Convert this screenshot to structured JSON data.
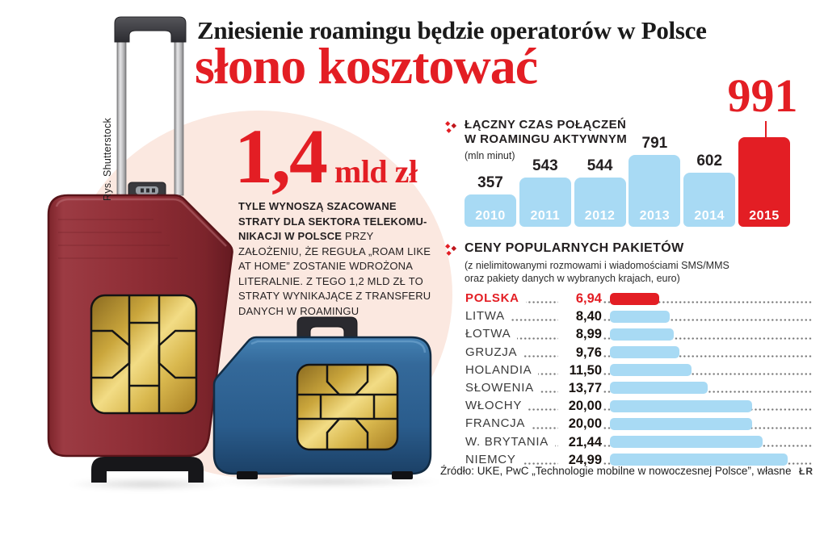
{
  "header": {
    "title_line1": "Zniesienie roamingu będzie operatorów w Polsce",
    "title_line2": "słono kosztować"
  },
  "credit": "Rys. Shutterstock",
  "loss_callout": {
    "big_number": "1,4",
    "unit": "mld zł",
    "bold_text": "TYLE WYNOSZĄ SZACOWANE STRATY DLA SEKTORA TELEKOMU-NIKACJI W POLSCE",
    "regular_text": " PRZY ZAŁOŻENIU, ŻE REGUŁA „ROAM LIKE AT HOME” ZOSTANIE WDROŻONA LITERALNIE. Z TEGO 1,2 MLD ZŁ TO STRATY WYNIKAJĄCE Z TRANSFERU DANYCH W ROAMINGU"
  },
  "chart_data": [
    {
      "type": "bar",
      "orientation": "vertical",
      "title": "ŁĄCZNY CZAS POŁĄCZEŃ W ROAMINGU AKTYWNYM",
      "title_lines": [
        "ŁĄCZNY CZAS POŁĄCZEŃ",
        "W ROAMINGU AKTYWNYM"
      ],
      "unit_label": "(mln minut)",
      "categories": [
        "2010",
        "2011",
        "2012",
        "2013",
        "2014",
        "2015"
      ],
      "values": [
        357,
        543,
        544,
        791,
        602,
        991
      ],
      "highlight_category": "2015",
      "highlight_value_label": "991",
      "bar_color": "#a8daf4",
      "highlight_color": "#e31e24",
      "grid": false,
      "ylim": [
        0,
        1080
      ]
    },
    {
      "type": "bar",
      "orientation": "horizontal",
      "title": "CENY POPULARNYCH PAKIETÓW",
      "subtitle_lines": [
        "(z nielimitowanymi rozmowami i wiadomościami SMS/MMS",
        "oraz pakiety danych w wybranych krajach, euro)"
      ],
      "categories": [
        "POLSKA",
        "LITWA",
        "ŁOTWA",
        "GRUZJA",
        "HOLANDIA",
        "SŁOWENIA",
        "WŁOCHY",
        "FRANCJA",
        "W. BRYTANIA",
        "NIEMCY"
      ],
      "values": [
        6.94,
        8.4,
        8.99,
        9.76,
        11.5,
        13.77,
        20.0,
        20.0,
        21.44,
        24.99
      ],
      "value_labels": [
        "6,94",
        "8,40",
        "8,99",
        "9,76",
        "11,50",
        "13,77",
        "20,00",
        "20,00",
        "21,44",
        "24,99"
      ],
      "highlight_category": "POLSKA",
      "bar_color": "#a8daf4",
      "highlight_color": "#e31e24",
      "grid": false,
      "xlim": [
        0,
        29
      ]
    }
  ],
  "source": {
    "text": "Źródło: UKE, PwC „Technologie mobilne w nowoczesnej Polsce”,  własne",
    "initials": "ŁR"
  },
  "colors": {
    "accent_red": "#e31e24",
    "bar_blue": "#a8daf4",
    "background_circle": "#fbe8e0",
    "text_dark": "#231f20",
    "suitcase_red": "#8e2d35",
    "suitcase_blue": "#2a5c8c",
    "chip_gold": "#e3c25c"
  }
}
